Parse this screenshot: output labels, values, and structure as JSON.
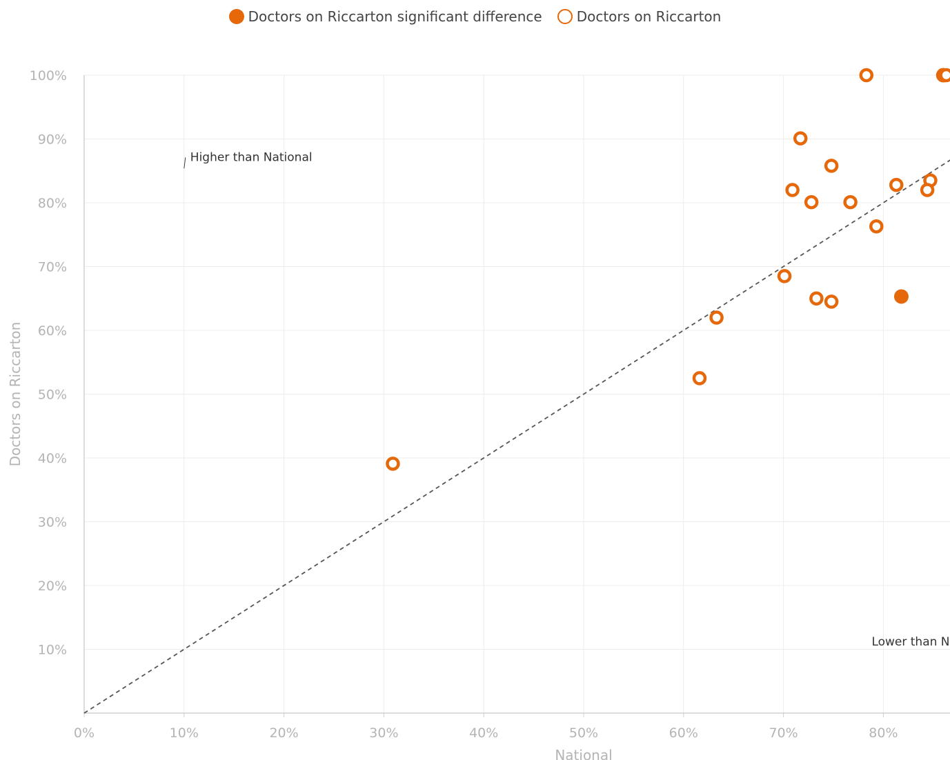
{
  "legend": {
    "significant": "Doctors on Riccarton significant difference",
    "regular": "Doctors on Riccarton"
  },
  "colors": {
    "series": "#e5680a",
    "grid": "#ececec",
    "axis": "#d0d0d0",
    "reference": "#555555"
  },
  "chart_data": {
    "type": "scatter",
    "xlabel": "National",
    "ylabel": "Doctors on Riccarton",
    "xlim": [
      0,
      100
    ],
    "ylim": [
      0,
      100
    ],
    "x_ticks": [
      "0%",
      "10%",
      "20%",
      "30%",
      "40%",
      "50%",
      "60%",
      "70%",
      "80%"
    ],
    "y_ticks": [
      "10%",
      "20%",
      "30%",
      "40%",
      "50%",
      "60%",
      "70%",
      "80%",
      "90%",
      "100%"
    ],
    "grid": true,
    "legend_position": "top-center",
    "reference_line": {
      "from": [
        0,
        0
      ],
      "to": [
        100,
        100
      ],
      "style": "dashed"
    },
    "annotations": [
      {
        "text": "Higher than National",
        "x": 10,
        "y": 87
      },
      {
        "text": "Lower than National",
        "x": 78,
        "y": 12
      }
    ],
    "series": [
      {
        "name": "Doctors on Riccarton significant difference",
        "marker": "filled",
        "points": [
          [
            81.8,
            65.3
          ],
          [
            86.0,
            100.0
          ]
        ]
      },
      {
        "name": "Doctors on Riccarton",
        "marker": "hollow",
        "points": [
          [
            30.9,
            39.1
          ],
          [
            61.6,
            52.5
          ],
          [
            63.3,
            62.0
          ],
          [
            70.1,
            68.5
          ],
          [
            73.3,
            65.0
          ],
          [
            74.8,
            64.5
          ],
          [
            70.9,
            82.0
          ],
          [
            72.8,
            80.1
          ],
          [
            71.7,
            90.1
          ],
          [
            74.8,
            85.8
          ],
          [
            76.7,
            80.1
          ],
          [
            79.3,
            76.3
          ],
          [
            78.3,
            100.0
          ],
          [
            81.3,
            82.8
          ],
          [
            84.7,
            83.5
          ],
          [
            84.4,
            82.0
          ],
          [
            86.3,
            100.0
          ]
        ]
      }
    ]
  }
}
